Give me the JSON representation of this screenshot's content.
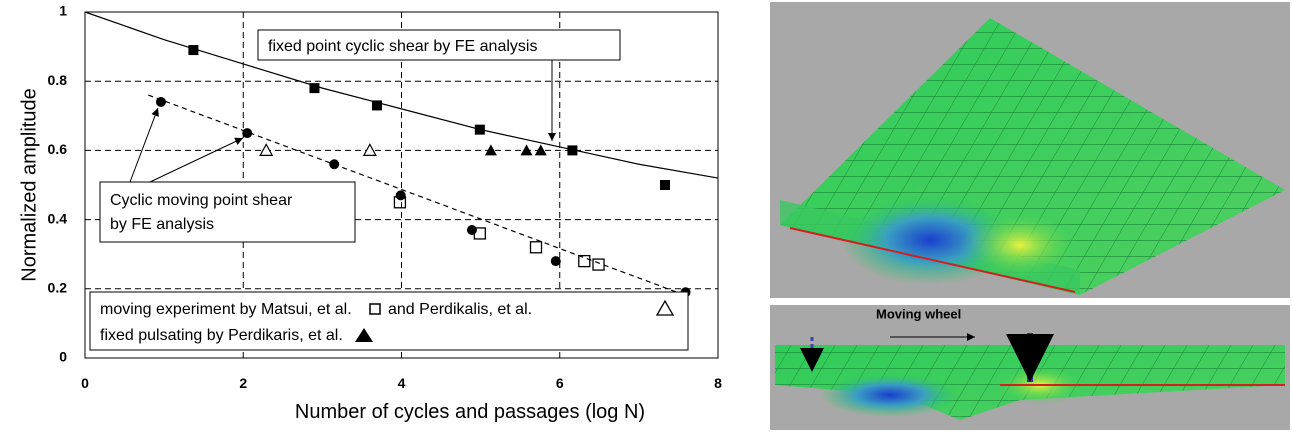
{
  "chart_data": {
    "type": "scatter",
    "x_label": "Number of cycles and passages (log N)",
    "y_label": "Normalized amplitude",
    "xlim": [
      0,
      8
    ],
    "xticks": [
      0,
      2,
      4,
      6,
      8
    ],
    "ylim": [
      0,
      1
    ],
    "yticks": [
      0,
      0.2,
      0.4,
      0.6,
      0.8,
      1
    ],
    "grid": true,
    "series": [
      {
        "marker": "filled-square",
        "color": "#000000",
        "x": [
          1.37,
          2.9,
          3.69,
          4.99,
          6.16,
          7.33
        ],
        "values": [
          0.89,
          0.78,
          0.73,
          0.66,
          0.6,
          0.5
        ]
      },
      {
        "marker": "filled-circle",
        "color": "#000000",
        "x": [
          0.96,
          2.05,
          3.15,
          3.99,
          4.89,
          5.95,
          7.59
        ],
        "values": [
          0.74,
          0.65,
          0.56,
          0.47,
          0.37,
          0.28,
          0.19
        ]
      },
      {
        "marker": "open-square",
        "color": "#000000",
        "x": [
          3.98,
          4.99,
          5.7,
          6.31,
          6.49
        ],
        "values": [
          0.45,
          0.36,
          0.32,
          0.28,
          0.27
        ]
      },
      {
        "marker": "open-triangle",
        "color": "#000000",
        "x": [
          2.29,
          3.6
        ],
        "values": [
          0.6,
          0.6
        ]
      },
      {
        "marker": "filled-triangle",
        "color": "#000000",
        "x": [
          5.13,
          5.58,
          5.76
        ],
        "values": [
          0.6,
          0.6,
          0.6
        ]
      },
      {
        "marker": "solid-line",
        "color": "#000000",
        "x": [
          0,
          1,
          2,
          3,
          4,
          5,
          6,
          7,
          8
        ],
        "values": [
          1,
          0.92,
          0.85,
          0.78,
          0.72,
          0.66,
          0.61,
          0.56,
          0.52
        ]
      },
      {
        "marker": "dashed-line",
        "color": "#000000",
        "x": [
          0.8,
          7.6
        ],
        "values": [
          0.76,
          0.18
        ]
      }
    ],
    "annotations": [
      "fixed point cyclic shear by FE analysis",
      "Cyclic moving point shear",
      "by FE analysis",
      "moving experiment  by Matsui, et al.",
      "and  Perdikalis, et al.",
      "fixed pulsating by Perdikaris, et al."
    ]
  },
  "figure": {
    "wheel_label": "Moving wheel"
  }
}
